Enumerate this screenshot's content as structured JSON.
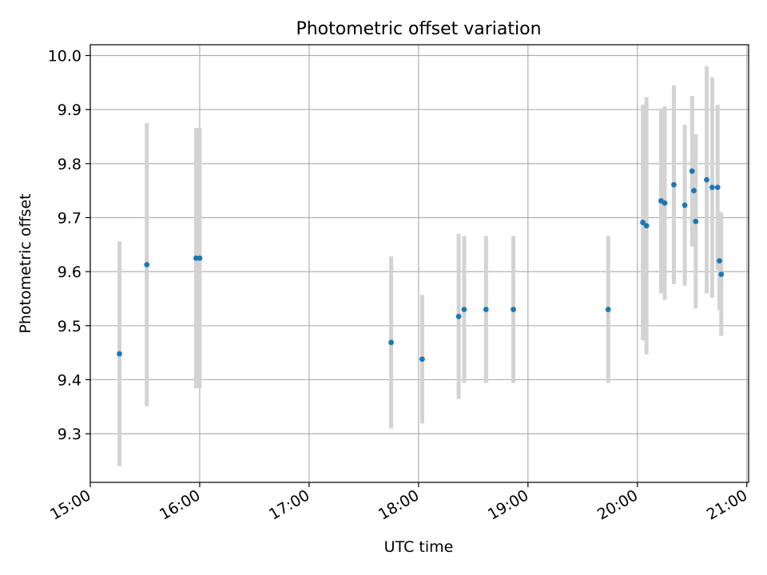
{
  "chart_data": {
    "type": "scatter",
    "title": "Photometric offset variation",
    "xlabel": "UTC time",
    "ylabel": "Photometric offset",
    "xlim": [
      "15:00",
      "21:01"
    ],
    "ylim": [
      9.21,
      10.02
    ],
    "x_ticks": [
      "15:00",
      "16:00",
      "17:00",
      "18:00",
      "19:00",
      "20:00",
      "21:00"
    ],
    "y_ticks": [
      "9.3",
      "9.4",
      "9.5",
      "9.6",
      "9.7",
      "9.8",
      "9.9",
      "10.0"
    ],
    "grid": true,
    "marker_color": "#1f77b4",
    "errorbar_color": "#d3d3d3",
    "series": [
      {
        "points": [
          {
            "x": "15:16",
            "y": 9.448,
            "yerr": 0.208
          },
          {
            "x": "15:31",
            "y": 9.613,
            "yerr": 0.262
          },
          {
            "x": "15:58",
            "y": 9.625,
            "yerr": 0.241
          },
          {
            "x": "16:00",
            "y": 9.625,
            "yerr": 0.241
          },
          {
            "x": "17:45",
            "y": 9.469,
            "yerr": 0.159
          },
          {
            "x": "18:02",
            "y": 9.438,
            "yerr": 0.119
          },
          {
            "x": "18:22",
            "y": 9.517,
            "yerr": 0.153
          },
          {
            "x": "18:25",
            "y": 9.53,
            "yerr": 0.136
          },
          {
            "x": "18:37",
            "y": 9.53,
            "yerr": 0.136
          },
          {
            "x": "18:52",
            "y": 9.53,
            "yerr": 0.136
          },
          {
            "x": "19:44",
            "y": 9.53,
            "yerr": 0.136
          },
          {
            "x": "20:03",
            "y": 9.691,
            "yerr": 0.218
          },
          {
            "x": "20:05",
            "y": 9.685,
            "yerr": 0.238
          },
          {
            "x": "20:13",
            "y": 9.731,
            "yerr": 0.171
          },
          {
            "x": "20:15",
            "y": 9.727,
            "yerr": 0.179
          },
          {
            "x": "20:20",
            "y": 9.761,
            "yerr": 0.184
          },
          {
            "x": "20:26",
            "y": 9.723,
            "yerr": 0.149
          },
          {
            "x": "20:30",
            "y": 9.786,
            "yerr": 0.139
          },
          {
            "x": "20:31",
            "y": 9.75,
            "yerr": 0.104
          },
          {
            "x": "20:32",
            "y": 9.693,
            "yerr": 0.161
          },
          {
            "x": "20:38",
            "y": 9.77,
            "yerr": 0.21
          },
          {
            "x": "20:41",
            "y": 9.756,
            "yerr": 0.204
          },
          {
            "x": "20:44",
            "y": 9.756,
            "yerr": 0.153
          },
          {
            "x": "20:45",
            "y": 9.62,
            "yerr": 0.091
          },
          {
            "x": "20:46",
            "y": 9.595,
            "yerr": 0.114
          }
        ]
      }
    ]
  }
}
